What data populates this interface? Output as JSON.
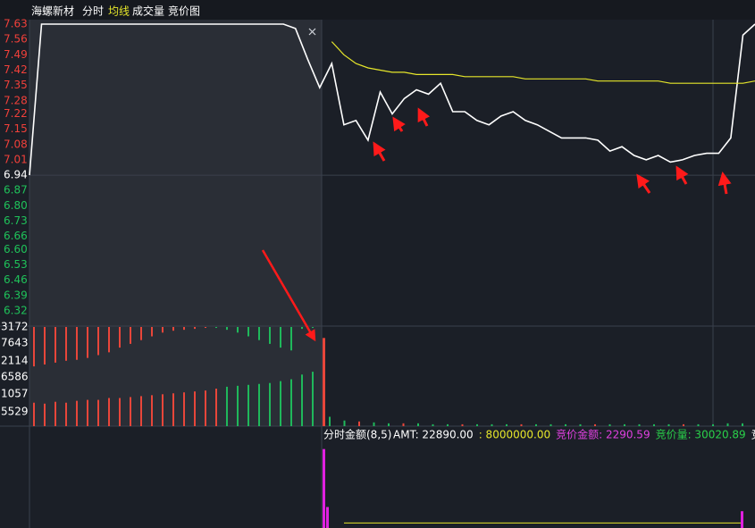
{
  "chart_data": [
    {
      "type": "line",
      "title": "海螺新材",
      "panels": [
        "成交量",
        "竞价图"
      ],
      "ylim": [
        6.32,
        7.63
      ],
      "base": 6.94,
      "yticks": [
        7.63,
        7.56,
        7.49,
        7.42,
        7.35,
        7.28,
        7.22,
        7.15,
        7.08,
        7.01,
        6.94,
        6.87,
        {
          "value": 6.8,
          "label": "6.80"
        },
        6.73,
        6.66,
        {
          "value": 6.6,
          "label": "6.60"
        },
        6.53,
        6.46,
        6.39,
        6.32
      ],
      "up_color": "#f0403a",
      "down_color": "#1fc25a",
      "base_color": "#ffffff",
      "series": [
        {
          "name": "分时",
          "color": "#ffffff",
          "values": [
            6.94,
            7.63,
            7.63,
            7.63,
            7.63,
            7.63,
            7.63,
            7.63,
            7.63,
            7.63,
            7.63,
            7.63,
            7.63,
            7.63,
            7.63,
            7.63,
            7.63,
            7.63,
            7.63,
            7.63,
            7.63,
            7.63,
            7.61,
            7.47,
            7.34,
            7.45,
            7.17,
            7.19,
            7.1,
            7.32,
            7.22,
            7.29,
            7.33,
            7.31,
            7.36,
            7.23,
            7.23,
            7.19,
            7.17,
            7.21,
            7.23,
            7.19,
            7.17,
            7.14,
            7.11,
            7.11,
            7.11,
            7.1,
            7.05,
            7.07,
            7.03,
            7.01,
            7.03,
            7.0,
            7.01,
            7.03,
            7.04,
            7.04,
            7.11,
            7.58,
            7.63
          ]
        },
        {
          "name": "均线",
          "color": "#e6e62a",
          "values": [
            null,
            null,
            null,
            null,
            null,
            null,
            null,
            null,
            null,
            null,
            null,
            null,
            null,
            null,
            null,
            null,
            null,
            null,
            null,
            null,
            null,
            null,
            null,
            null,
            null,
            7.55,
            7.49,
            7.45,
            7.43,
            7.42,
            7.41,
            7.41,
            7.4,
            7.4,
            7.4,
            7.4,
            7.39,
            7.39,
            7.39,
            7.39,
            7.39,
            7.38,
            7.38,
            7.38,
            7.38,
            7.38,
            7.38,
            7.37,
            7.37,
            7.37,
            7.37,
            7.37,
            7.37,
            7.36,
            7.36,
            7.36,
            7.36,
            7.36,
            7.36,
            7.36,
            7.37
          ]
        }
      ]
    },
    {
      "type": "bar",
      "axis_labels": [
        "3172",
        "7643",
        "2114",
        "6586",
        "1057",
        "5529"
      ],
      "label_color": "#ffffff",
      "ylim": [
        0,
        100
      ],
      "series": [
        {
          "values": [
            42,
            40,
            38,
            36,
            35,
            33,
            30,
            27,
            22,
            18,
            14,
            10,
            6,
            4,
            3,
            2,
            1,
            1,
            3,
            6,
            10,
            14,
            18,
            22,
            25,
            2,
            1
          ],
          "colors": [
            "#e8463a",
            "#e8463a",
            "#e8463a",
            "#e8463a",
            "#e8463a",
            "#e8463a",
            "#e8463a",
            "#e8463a",
            "#e8463a",
            "#e8463a",
            "#e8463a",
            "#e8463a",
            "#e8463a",
            "#e8463a",
            "#e8463a",
            "#e8463a",
            "#e8463a",
            "#1fb85b",
            "#1fb85b",
            "#1fb85b",
            "#1fb85b",
            "#1fb85b",
            "#1fb85b",
            "#1fb85b",
            "#1fb85b",
            "#1fb85b",
            "#1fb85b"
          ]
        },
        {
          "values": [
            25,
            24,
            26,
            25,
            27,
            28,
            28,
            30,
            30,
            31,
            32,
            33,
            34,
            35,
            36,
            37,
            38,
            40,
            42,
            43,
            44,
            45,
            46,
            48,
            50,
            55,
            58,
            94,
            10,
            6,
            5,
            4,
            3,
            3,
            3,
            2,
            2,
            2,
            2,
            2,
            2,
            2,
            2,
            2,
            2,
            2,
            2,
            2,
            2,
            2,
            2,
            2,
            2,
            2,
            2,
            3,
            3,
            3,
            18
          ],
          "colors": [
            "#e8463a",
            "#e8463a",
            "#e8463a",
            "#e8463a",
            "#e8463a",
            "#e8463a",
            "#e8463a",
            "#e8463a",
            "#e8463a",
            "#e8463a",
            "#e8463a",
            "#e8463a",
            "#e8463a",
            "#e8463a",
            "#e8463a",
            "#e8463a",
            "#e8463a",
            "#e8463a",
            "#1fb85b",
            "#1fb85b",
            "#1fb85b",
            "#1fb85b",
            "#1fb85b",
            "#1fb85b",
            "#1fb85b",
            "#1fb85b",
            "#1fb85b",
            "#e8463a",
            "#1fb85b",
            "#1fb85b",
            "#e8463a",
            "#1fb85b",
            "#1fb85b",
            "#e8463a",
            "#1fb85b",
            "#1fb85b",
            "#1fb85b",
            "#e8463a",
            "#1fb85b",
            "#1fb85b",
            "#1fb85b",
            "#e8463a",
            "#1fb85b",
            "#1fb85b",
            "#1fb85b",
            "#1fb85b",
            "#e8463a",
            "#1fb85b",
            "#1fb85b",
            "#1fb85b",
            "#1fb85b",
            "#1fb85b",
            "#e8463a",
            "#1fb85b",
            "#1fb85b",
            "#1fb85b",
            "#1fb85b",
            "#1fb85b",
            "#e8463a"
          ]
        }
      ]
    },
    {
      "type": "bar",
      "title": "分时金额(8,5)",
      "legend": [
        {
          "text": "AMT: 22890.00",
          "color": "#ffffff"
        },
        {
          "text": ": 8000000.00",
          "color": "#e6e62a"
        },
        {
          "text": "竞价金额: 2290.59",
          "color": "#e040e0"
        },
        {
          "text": "竞价量: 30020.89",
          "color": "#2ad04a"
        },
        {
          "text": "竞价占",
          "color": "#ffffff"
        }
      ],
      "ylim": [
        0,
        100
      ],
      "color": "#e020e0",
      "values": [
        94,
        25,
        20
      ],
      "line_value": 6,
      "line_color": "#e6e62a"
    }
  ]
}
